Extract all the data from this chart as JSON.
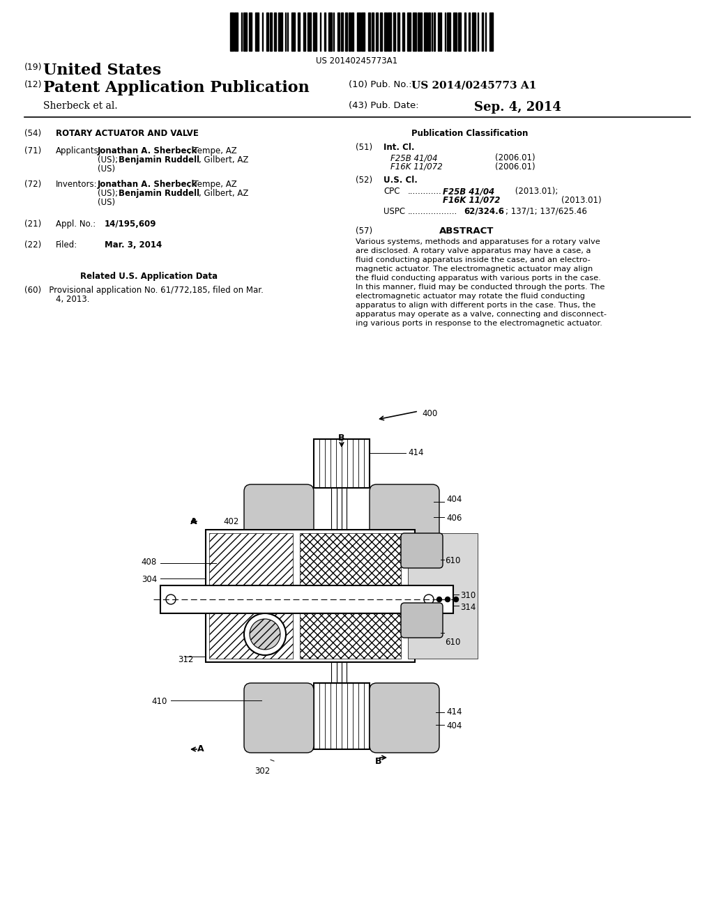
{
  "bg_color": "#ffffff",
  "barcode_text": "US 20140245773A1",
  "header": {
    "line1_num": "(19)",
    "line1_text": "United States",
    "line2_num": "(12)",
    "line2_text": "Patent Application Publication",
    "line3_left": "Sherbeck et al.",
    "pub_no_label": "(10) Pub. No.:",
    "pub_no_value": "US 2014/0245773 A1",
    "pub_date_label": "(43) Pub. Date:",
    "pub_date_value": "Sep. 4, 2014"
  },
  "abstract_lines": [
    "Various systems, methods and apparatuses for a rotary valve",
    "are disclosed. A rotary valve apparatus may have a case, a",
    "fluid conducting apparatus inside the case, and an electro-",
    "magnetic actuator. The electromagnetic actuator may align",
    "the fluid conducting apparatus with various ports in the case.",
    "In this manner, fluid may be conducted through the ports. The",
    "electromagnetic actuator may rotate the fluid conducting",
    "apparatus to align with different ports in the case. Thus, the",
    "apparatus may operate as a valve, connecting and disconnect-",
    "ing various ports in response to the electromagnetic actuator."
  ]
}
